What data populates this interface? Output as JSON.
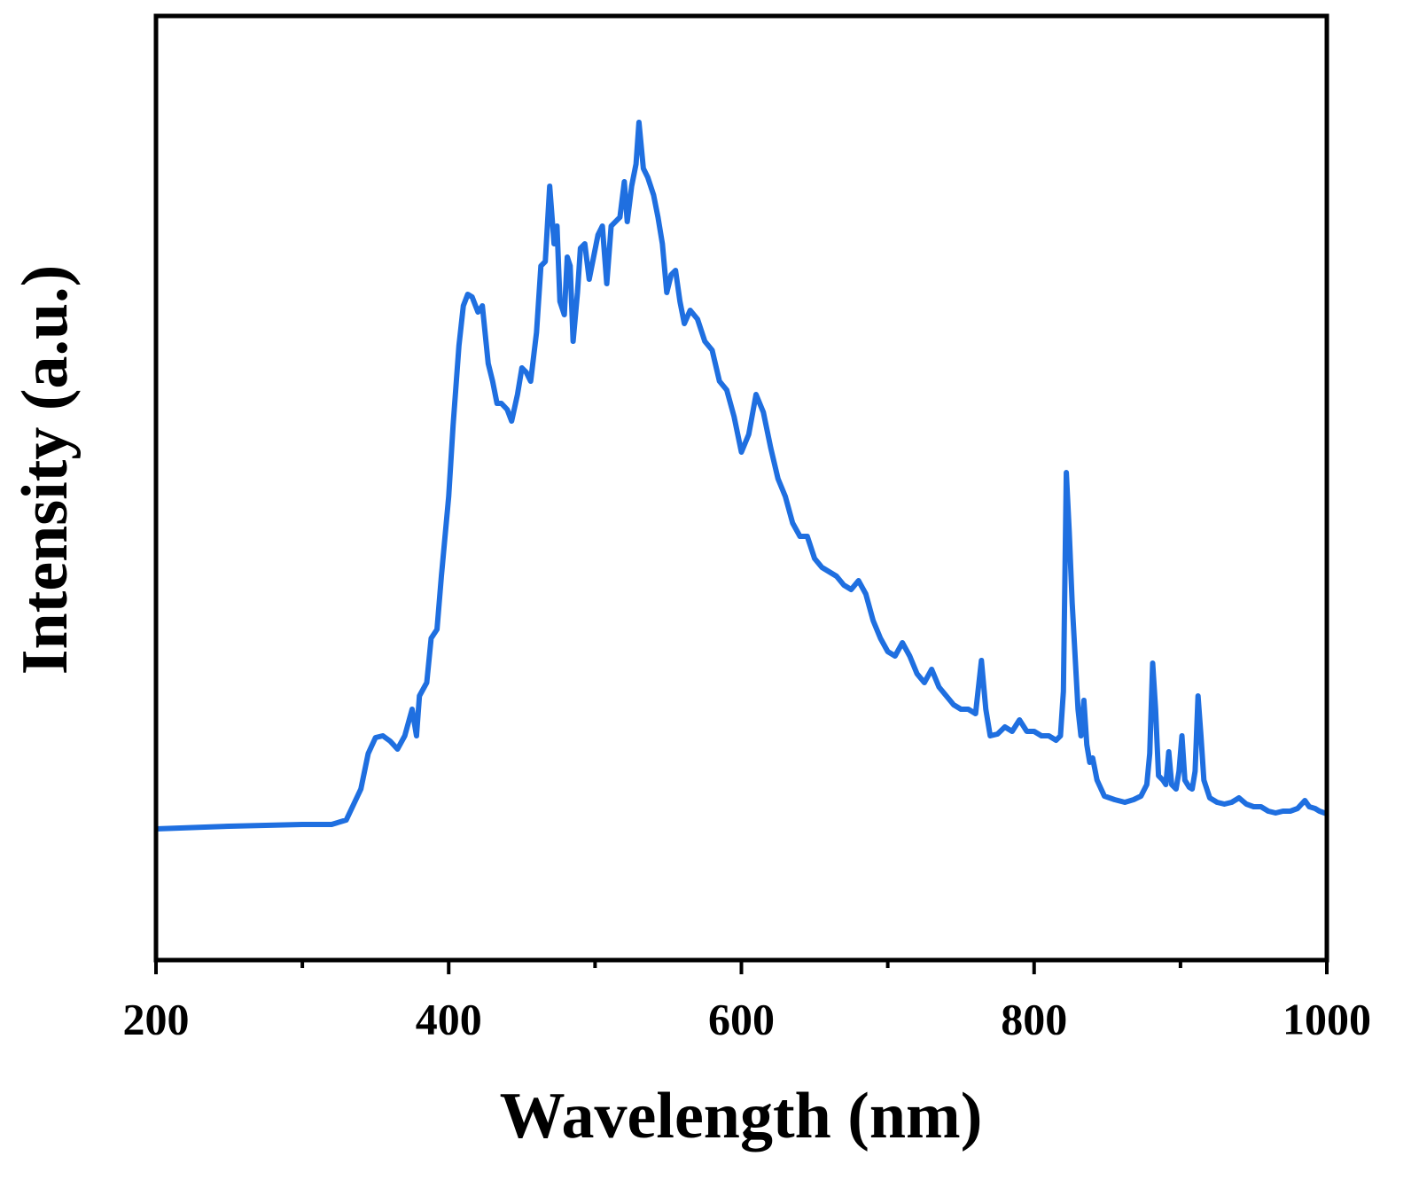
{
  "chart_data": {
    "type": "line",
    "xlabel": "Wavelength (nm)",
    "ylabel": "Intensity (a.u.)",
    "xlim": [
      200,
      1000
    ],
    "xticks": [
      200,
      400,
      600,
      800,
      1000
    ],
    "xminor_ticks": [
      300,
      500,
      700,
      900
    ],
    "ylim": [
      0,
      1065
    ],
    "series": [
      {
        "color": "#1f6fe0",
        "x": [
          200,
          250,
          300,
          320,
          330,
          340,
          345,
          350,
          355,
          360,
          365,
          370,
          375,
          378,
          380,
          385,
          388,
          392,
          395,
          400,
          403,
          407,
          410,
          413,
          416,
          420,
          423,
          427,
          430,
          433,
          436,
          440,
          443,
          447,
          450,
          453,
          456,
          460,
          463,
          466,
          469,
          472,
          474,
          476,
          479,
          481,
          483,
          485,
          488,
          490,
          493,
          496,
          499,
          502,
          505,
          508,
          511,
          514,
          517,
          520,
          522,
          525,
          528,
          530,
          533,
          536,
          540,
          543,
          546,
          549,
          552,
          555,
          558,
          561,
          565,
          570,
          575,
          580,
          585,
          590,
          595,
          600,
          605,
          610,
          615,
          620,
          625,
          630,
          635,
          640,
          645,
          650,
          655,
          660,
          665,
          670,
          675,
          680,
          685,
          690,
          695,
          700,
          705,
          710,
          715,
          720,
          725,
          730,
          735,
          740,
          745,
          750,
          755,
          760,
          764,
          767,
          770,
          775,
          780,
          785,
          790,
          795,
          800,
          805,
          810,
          815,
          818,
          820,
          822,
          824,
          826,
          828,
          830,
          832,
          834,
          836,
          838,
          840,
          843,
          848,
          855,
          862,
          868,
          873,
          877,
          879,
          881,
          883,
          885,
          888,
          890,
          892,
          894,
          897,
          899,
          901,
          903,
          906,
          908,
          910,
          912,
          914,
          916,
          920,
          925,
          930,
          935,
          940,
          945,
          950,
          955,
          960,
          965,
          970,
          975,
          980,
          985,
          988,
          992,
          995,
          1000
        ],
        "values": [
          148,
          151,
          153,
          153,
          158,
          193,
          233,
          251,
          253,
          247,
          238,
          253,
          283,
          253,
          298,
          313,
          363,
          373,
          433,
          523,
          603,
          693,
          738,
          751,
          748,
          731,
          738,
          673,
          653,
          628,
          628,
          621,
          608,
          638,
          668,
          663,
          653,
          708,
          783,
          788,
          873,
          808,
          828,
          743,
          728,
          793,
          783,
          698,
          753,
          803,
          808,
          768,
          793,
          818,
          828,
          763,
          828,
          833,
          838,
          878,
          833,
          873,
          898,
          945,
          893,
          883,
          863,
          838,
          808,
          753,
          773,
          778,
          743,
          718,
          733,
          723,
          698,
          688,
          653,
          643,
          613,
          573,
          593,
          638,
          618,
          578,
          543,
          523,
          493,
          478,
          478,
          453,
          443,
          438,
          433,
          423,
          418,
          428,
          413,
          383,
          363,
          348,
          343,
          358,
          343,
          323,
          313,
          328,
          308,
          298,
          288,
          283,
          283,
          278,
          338,
          283,
          253,
          255,
          263,
          258,
          271,
          258,
          258,
          253,
          253,
          248,
          253,
          303,
          550,
          483,
          403,
          343,
          283,
          253,
          293,
          243,
          223,
          228,
          203,
          185,
          181,
          178,
          181,
          185,
          198,
          233,
          335,
          283,
          208,
          203,
          198,
          235,
          198,
          193,
          213,
          253,
          203,
          195,
          193,
          213,
          298,
          253,
          203,
          183,
          178,
          176,
          178,
          183,
          176,
          173,
          173,
          168,
          166,
          168,
          168,
          171,
          180,
          173,
          171,
          168,
          165
        ]
      }
    ]
  }
}
